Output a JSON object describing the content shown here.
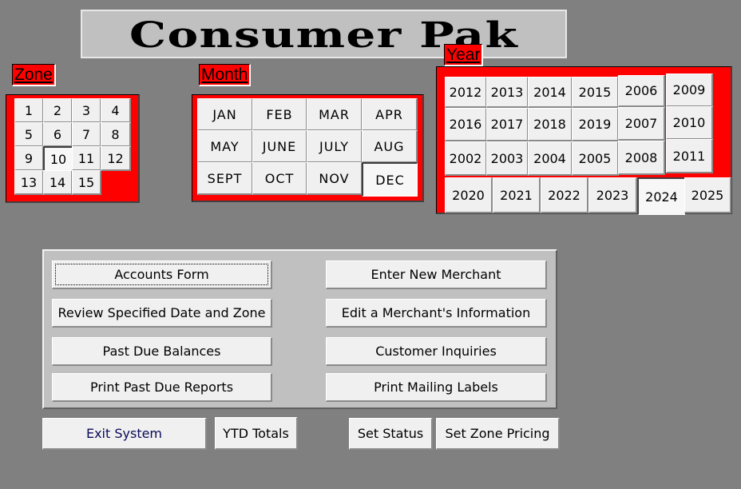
{
  "app": {
    "title": "Consumer Pak"
  },
  "zone": {
    "label": "Zone",
    "items": [
      "1",
      "2",
      "3",
      "4",
      "5",
      "6",
      "7",
      "8",
      "9",
      "10",
      "11",
      "12",
      "13",
      "14",
      "15"
    ],
    "selected": "10"
  },
  "month": {
    "label": "Month",
    "items": [
      "JAN",
      "FEB",
      "MAR",
      "APR",
      "MAY",
      "JUNE",
      "JULY",
      "AUG",
      "SEPT",
      "OCT",
      "NOV",
      "DEC"
    ],
    "selected": "DEC"
  },
  "year": {
    "label": "Year",
    "items": [
      "2012",
      "2013",
      "2014",
      "2015",
      "2006",
      "2009",
      "2016",
      "2017",
      "2018",
      "2019",
      "2007",
      "2010",
      "2002",
      "2003",
      "2004",
      "2005",
      "2008",
      "2011",
      "2020",
      "2021",
      "2022",
      "2023",
      "2024",
      "2025"
    ],
    "selected": "2024"
  },
  "menu": {
    "accounts_form": "Accounts Form",
    "review_specified": "Review Specified Date and Zone",
    "past_due_balances": "Past Due Balances",
    "print_past_due_reports": "Print Past Due Reports",
    "enter_new_merchant": "Enter New Merchant",
    "edit_merchant_info": "Edit a Merchant's Information",
    "customer_inquiries": "Customer Inquiries",
    "print_mailing_labels": "Print Mailing Labels"
  },
  "footer": {
    "exit_system": "Exit System",
    "ytd_totals": "YTD Totals",
    "set_status": "Set Status",
    "set_zone_pricing": "Set Zone Pricing"
  },
  "colors": {
    "background": "#808080",
    "accent_red": "#ff0000",
    "button_face": "#f0f0f0",
    "panel": "#c0c0c0"
  }
}
